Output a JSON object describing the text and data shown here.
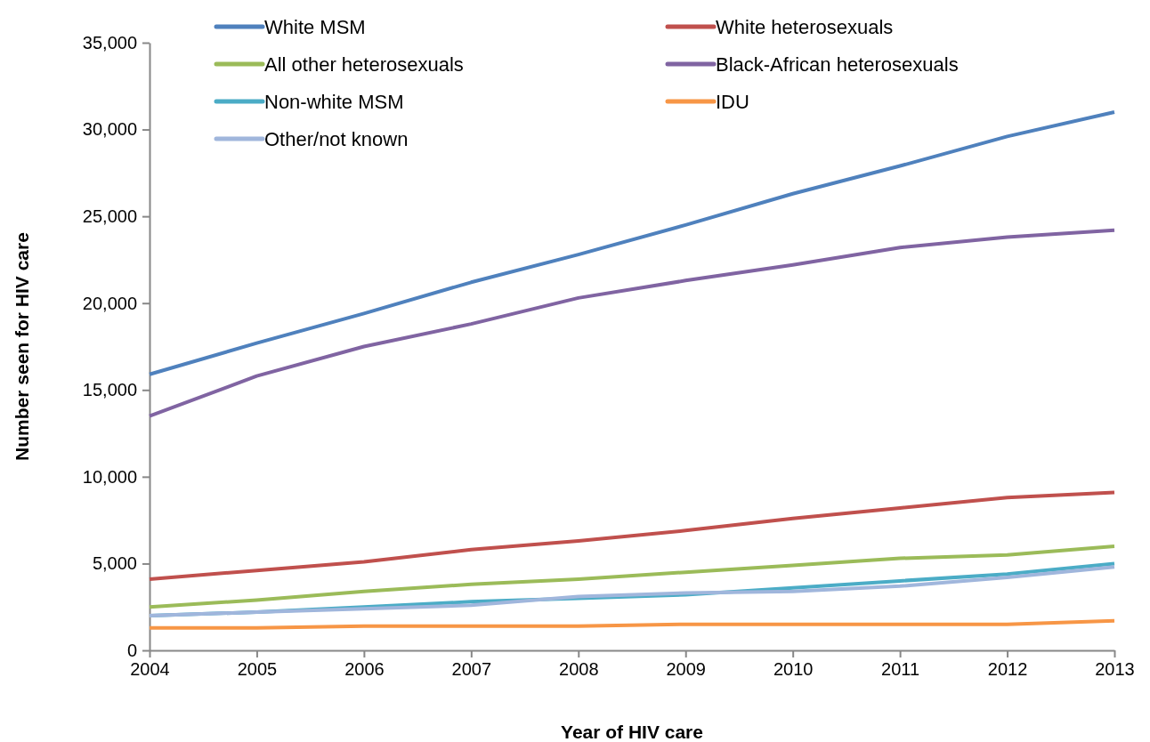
{
  "chart_data": {
    "type": "line",
    "xlabel": "Year of HIV care",
    "ylabel": "Number seen for HIV care",
    "x": [
      2004,
      2005,
      2006,
      2007,
      2008,
      2009,
      2010,
      2011,
      2012,
      2013
    ],
    "xlim": [
      2004,
      2013
    ],
    "xticks": [
      2004,
      2005,
      2006,
      2007,
      2008,
      2009,
      2010,
      2011,
      2012,
      2013
    ],
    "ylim": [
      0,
      35000
    ],
    "yticks": [
      {
        "value": 0,
        "label": "0"
      },
      {
        "value": 5000,
        "label": "5,000"
      },
      {
        "value": 10000,
        "label": "10,000"
      },
      {
        "value": 15000,
        "label": "15,000"
      },
      {
        "value": 20000,
        "label": "20,000"
      },
      {
        "value": 25000,
        "label": "25,000"
      },
      {
        "value": 30000,
        "label": "30,000"
      },
      {
        "value": 35000,
        "label": "35,000"
      }
    ],
    "grid": false,
    "legend": "top",
    "marker": "none",
    "line_style": "solid",
    "series": [
      {
        "name": "White MSM",
        "color": "#4f81bd",
        "values": [
          15900,
          17700,
          19400,
          21200,
          22800,
          24500,
          26300,
          27900,
          29600,
          31000
        ]
      },
      {
        "name": "White heterosexuals",
        "color": "#c0504d",
        "values": [
          4100,
          4600,
          5100,
          5800,
          6300,
          6900,
          7600,
          8200,
          8800,
          9100
        ]
      },
      {
        "name": "All other heterosexuals",
        "color": "#9bbb59",
        "values": [
          2500,
          2900,
          3400,
          3800,
          4100,
          4500,
          4900,
          5300,
          5500,
          6000
        ]
      },
      {
        "name": "Black-African heterosexuals",
        "color": "#8064a2",
        "values": [
          13500,
          15800,
          17500,
          18800,
          20300,
          21300,
          22200,
          23200,
          23800,
          24200
        ]
      },
      {
        "name": "Non-white MSM",
        "color": "#4bacc6",
        "values": [
          2000,
          2200,
          2500,
          2800,
          3000,
          3200,
          3600,
          4000,
          4400,
          5000
        ]
      },
      {
        "name": "IDU",
        "color": "#f79646",
        "values": [
          1300,
          1300,
          1400,
          1400,
          1400,
          1500,
          1500,
          1500,
          1500,
          1700
        ]
      },
      {
        "name": "Other/not known",
        "color": "#a0b6dc",
        "values": [
          2000,
          2200,
          2400,
          2600,
          3100,
          3300,
          3400,
          3700,
          4200,
          4800
        ]
      }
    ]
  }
}
